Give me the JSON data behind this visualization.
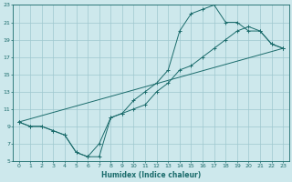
{
  "xlabel": "Humidex (Indice chaleur)",
  "background_color": "#cde8ec",
  "grid_color": "#9fc8cf",
  "line_color": "#1a6b6b",
  "xlim": [
    -0.5,
    23.5
  ],
  "ylim": [
    5,
    23
  ],
  "xticks": [
    0,
    1,
    2,
    3,
    4,
    5,
    6,
    7,
    8,
    9,
    10,
    11,
    12,
    13,
    14,
    15,
    16,
    17,
    18,
    19,
    20,
    21,
    22,
    23
  ],
  "yticks": [
    5,
    7,
    9,
    11,
    13,
    15,
    17,
    19,
    21,
    23
  ],
  "line1_x": [
    0,
    23
  ],
  "line1_y": [
    9.5,
    18
  ],
  "line2_x": [
    0,
    1,
    2,
    3,
    4,
    5,
    6,
    7,
    8,
    9,
    10,
    11,
    12,
    13,
    14,
    15,
    16,
    17,
    18,
    19,
    20,
    21,
    22,
    23
  ],
  "line2_y": [
    9.5,
    9,
    9,
    8.5,
    8,
    6,
    5.5,
    5.5,
    10,
    10.5,
    12,
    13,
    14,
    15.5,
    20,
    22,
    22.5,
    23,
    21,
    21,
    20,
    20,
    18.5,
    18
  ],
  "line3_x": [
    0,
    1,
    2,
    3,
    4,
    5,
    6,
    7,
    8,
    9,
    10,
    11,
    12,
    13,
    14,
    15,
    16,
    17,
    18,
    19,
    20,
    21,
    22,
    23
  ],
  "line3_y": [
    9.5,
    9,
    9,
    8.5,
    8,
    6,
    5.5,
    7,
    10,
    10.5,
    11,
    11.5,
    13,
    14,
    15.5,
    16,
    17,
    18,
    19,
    20,
    20.5,
    20,
    18.5,
    18
  ]
}
